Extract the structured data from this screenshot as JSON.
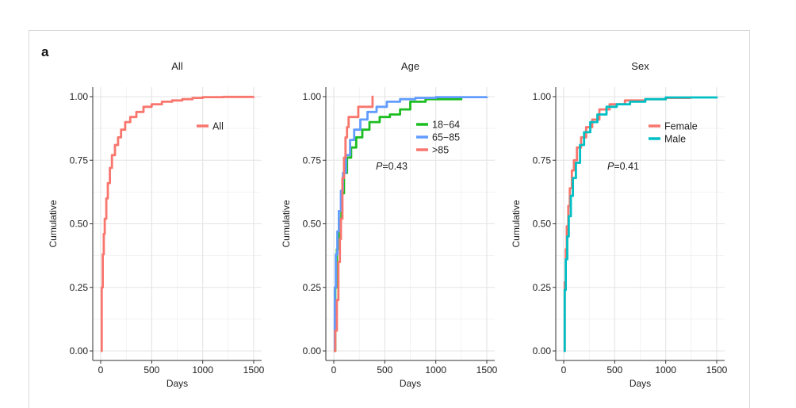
{
  "panel_label": "a",
  "chart_data": [
    {
      "type": "line",
      "step": true,
      "title": "All",
      "xlabel": "Days",
      "ylabel": "Cumulative",
      "xlim": [
        0,
        1500
      ],
      "ylim": [
        0,
        1
      ],
      "xticks": [
        "0",
        "500",
        "1000",
        "1500"
      ],
      "yticks": [
        "0.00",
        "0.25",
        "0.50",
        "0.75",
        "1.00"
      ],
      "grid": true,
      "legend_position": "top-right",
      "series": [
        {
          "name": "All",
          "color": "#F8766D",
          "points": [
            [
              0,
              0
            ],
            [
              10,
              0.25
            ],
            [
              20,
              0.38
            ],
            [
              30,
              0.46
            ],
            [
              40,
              0.52
            ],
            [
              55,
              0.6
            ],
            [
              70,
              0.66
            ],
            [
              90,
              0.72
            ],
            [
              110,
              0.77
            ],
            [
              140,
              0.81
            ],
            [
              170,
              0.84
            ],
            [
              200,
              0.87
            ],
            [
              240,
              0.9
            ],
            [
              290,
              0.92
            ],
            [
              350,
              0.94
            ],
            [
              420,
              0.96
            ],
            [
              500,
              0.97
            ],
            [
              600,
              0.98
            ],
            [
              700,
              0.985
            ],
            [
              800,
              0.99
            ],
            [
              900,
              0.995
            ],
            [
              1000,
              0.998
            ],
            [
              1200,
              0.999
            ],
            [
              1500,
              1.0
            ]
          ]
        }
      ]
    },
    {
      "type": "line",
      "step": true,
      "title": "Age",
      "xlabel": "Days",
      "ylabel": "Cumulative",
      "xlim": [
        0,
        1500
      ],
      "ylim": [
        0,
        1
      ],
      "xticks": [
        "0",
        "500",
        "1000",
        "1500"
      ],
      "yticks": [
        "0.00",
        "0.25",
        "0.50",
        "0.75",
        "1.00"
      ],
      "grid": true,
      "annotation": "P=0.43",
      "legend_position": "top-right",
      "series": [
        {
          "name": "18−64",
          "color": "#1CBD20",
          "points": [
            [
              0,
              0
            ],
            [
              15,
              0.25
            ],
            [
              30,
              0.4
            ],
            [
              50,
              0.52
            ],
            [
              75,
              0.62
            ],
            [
              100,
              0.7
            ],
            [
              130,
              0.76
            ],
            [
              170,
              0.8
            ],
            [
              220,
              0.84
            ],
            [
              280,
              0.87
            ],
            [
              350,
              0.9
            ],
            [
              450,
              0.92
            ],
            [
              550,
              0.93
            ],
            [
              650,
              0.95
            ],
            [
              750,
              0.98
            ],
            [
              900,
              0.99
            ],
            [
              1000,
              0.99
            ],
            [
              1250,
              0.995
            ]
          ]
        },
        {
          "name": "65−85",
          "color": "#619CFF",
          "points": [
            [
              0,
              0
            ],
            [
              10,
              0.25
            ],
            [
              20,
              0.38
            ],
            [
              35,
              0.47
            ],
            [
              50,
              0.55
            ],
            [
              70,
              0.63
            ],
            [
              90,
              0.7
            ],
            [
              120,
              0.77
            ],
            [
              160,
              0.83
            ],
            [
              200,
              0.87
            ],
            [
              260,
              0.91
            ],
            [
              330,
              0.94
            ],
            [
              420,
              0.96
            ],
            [
              520,
              0.98
            ],
            [
              650,
              0.99
            ],
            [
              800,
              0.995
            ],
            [
              1000,
              0.998
            ],
            [
              1500,
              1.0
            ]
          ]
        },
        {
          "name": ">85",
          "color": "#F8766D",
          "points": [
            [
              0,
              0
            ],
            [
              15,
              0.08
            ],
            [
              30,
              0.2
            ],
            [
              45,
              0.35
            ],
            [
              60,
              0.44
            ],
            [
              70,
              0.52
            ],
            [
              85,
              0.68
            ],
            [
              100,
              0.76
            ],
            [
              115,
              0.84
            ],
            [
              130,
              0.88
            ],
            [
              145,
              0.92
            ],
            [
              200,
              0.92
            ],
            [
              240,
              0.96
            ],
            [
              340,
              0.96
            ],
            [
              380,
              1.0
            ],
            [
              380,
              0.96
            ]
          ]
        }
      ]
    },
    {
      "type": "line",
      "step": true,
      "title": "Sex",
      "xlabel": "Days",
      "ylabel": "Cumulative",
      "xlim": [
        0,
        1500
      ],
      "ylim": [
        0,
        1
      ],
      "xticks": [
        "0",
        "500",
        "1000",
        "1500"
      ],
      "yticks": [
        "0.00",
        "0.25",
        "0.50",
        "0.75",
        "1.00"
      ],
      "grid": true,
      "annotation": "P=0.41",
      "legend_position": "top-right",
      "series": [
        {
          "name": "Female",
          "color": "#F8766D",
          "points": [
            [
              0,
              0
            ],
            [
              10,
              0.27
            ],
            [
              20,
              0.4
            ],
            [
              30,
              0.49
            ],
            [
              45,
              0.57
            ],
            [
              60,
              0.64
            ],
            [
              80,
              0.71
            ],
            [
              100,
              0.75
            ],
            [
              130,
              0.8
            ],
            [
              170,
              0.84
            ],
            [
              220,
              0.88
            ],
            [
              280,
              0.91
            ],
            [
              350,
              0.95
            ],
            [
              450,
              0.97
            ],
            [
              600,
              0.985
            ],
            [
              800,
              0.99
            ],
            [
              1000,
              0.995
            ],
            [
              1250,
              0.995
            ]
          ]
        },
        {
          "name": "Male",
          "color": "#00BFC4",
          "points": [
            [
              0,
              0
            ],
            [
              10,
              0.24
            ],
            [
              20,
              0.36
            ],
            [
              35,
              0.45
            ],
            [
              50,
              0.53
            ],
            [
              70,
              0.61
            ],
            [
              90,
              0.68
            ],
            [
              120,
              0.74
            ],
            [
              160,
              0.81
            ],
            [
              200,
              0.86
            ],
            [
              260,
              0.9
            ],
            [
              330,
              0.93
            ],
            [
              420,
              0.96
            ],
            [
              520,
              0.97
            ],
            [
              650,
              0.98
            ],
            [
              800,
              0.99
            ],
            [
              1000,
              0.997
            ],
            [
              1500,
              1.0
            ]
          ]
        }
      ]
    }
  ]
}
